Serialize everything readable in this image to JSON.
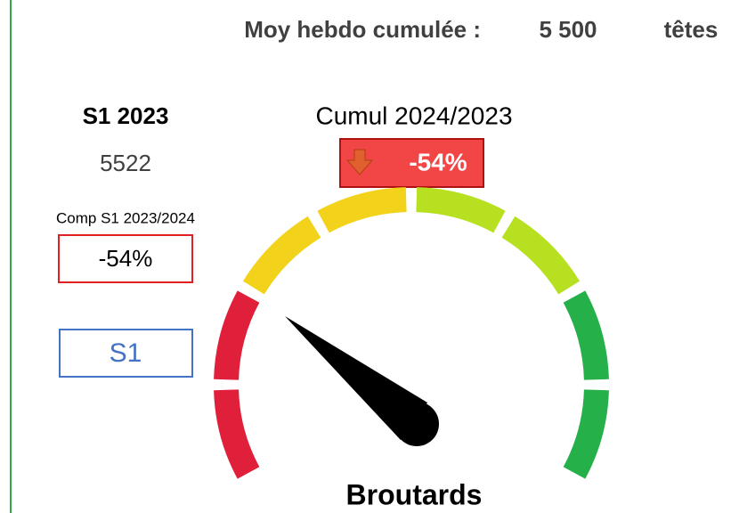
{
  "header": {
    "label": "Moy hebdo cumulée :",
    "value": "5 500",
    "unit": "têtes"
  },
  "left": {
    "period_title": "S1 2023",
    "period_value": "5522",
    "comp_label": "Comp S1 2023/2024",
    "comp_value": "-54%",
    "selector": "S1"
  },
  "cumul": {
    "title": "Cumul 2024/2023",
    "value": "-54%"
  },
  "gauge": {
    "label": "Broutards"
  }
}
